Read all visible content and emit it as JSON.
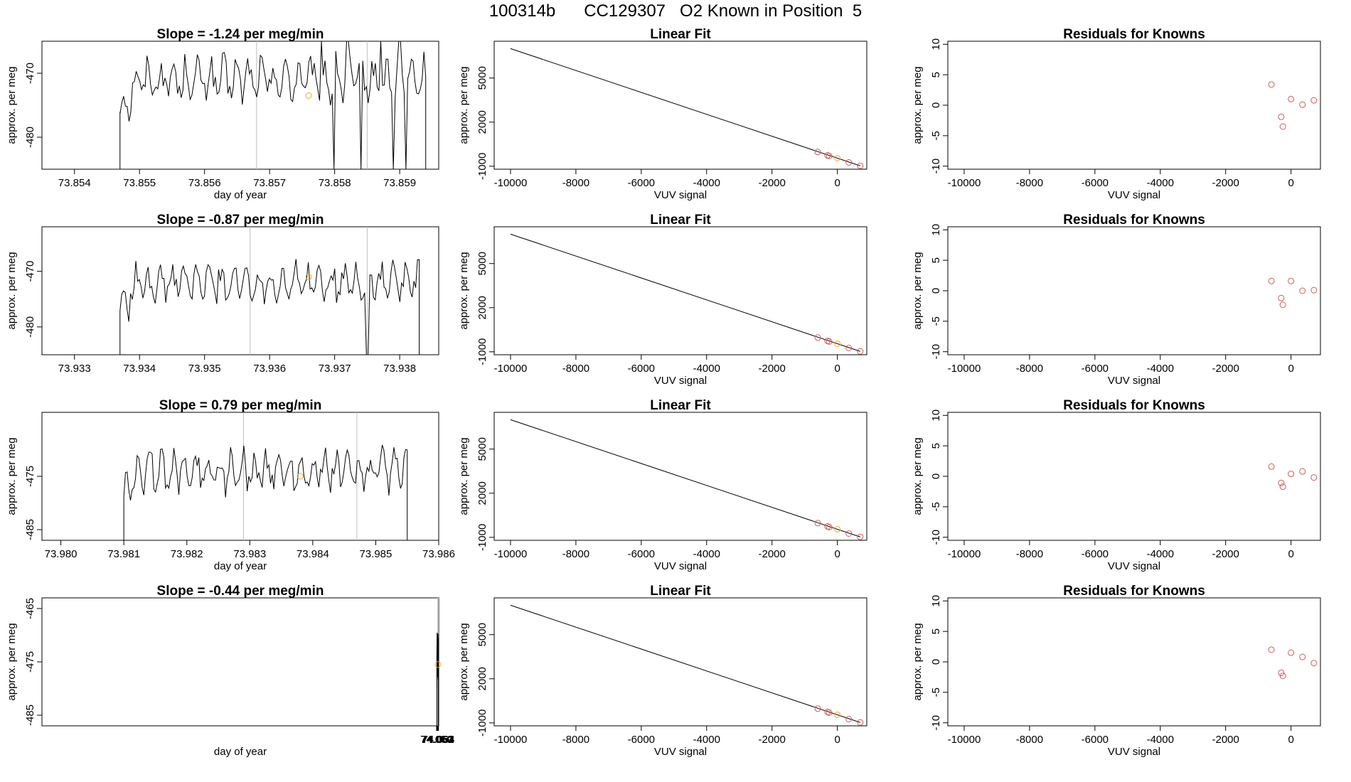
{
  "page": {
    "title": "100314b      CC129307   O2 Known in Position  5"
  },
  "colors": {
    "line": "#000000",
    "known_points": "#cd5c5c",
    "highlight_point": "#f0a830",
    "marker_lines": "#bebebe"
  },
  "chart_data": [
    {
      "type": "line",
      "panel": "time-series",
      "row": 1,
      "title": "Slope =  -1.24  per meg/min",
      "xlabel": "day of year",
      "ylabel": "approx. per meg",
      "xlim": [
        73.8535,
        73.8596
      ],
      "ylim": [
        -485,
        -465
      ],
      "xticks": [
        73.854,
        73.855,
        73.856,
        73.857,
        73.858,
        73.859
      ],
      "xtick_labels": [
        "73.854",
        "73.855",
        "73.856",
        "73.857",
        "73.858",
        "73.859"
      ],
      "yticks": [
        -470,
        -480
      ],
      "ytick_labels": [
        "-470",
        "-480"
      ],
      "vlines": [
        73.8568,
        73.8585
      ],
      "series_start": 73.8547,
      "series_end": 73.8594,
      "series_level": -471,
      "series_amp": 2.6,
      "spikes": [
        {
          "x": 73.8578,
          "y": -460
        },
        {
          "x": 73.858,
          "y": -488
        },
        {
          "x": 73.8582,
          "y": -460
        },
        {
          "x": 73.8584,
          "y": -488
        },
        {
          "x": 73.8587,
          "y": -460
        },
        {
          "x": 73.8589,
          "y": -488
        },
        {
          "x": 73.859,
          "y": -460
        },
        {
          "x": 73.8591,
          "y": -488
        }
      ],
      "point": {
        "x": 73.8576,
        "y": -473.5
      }
    },
    {
      "type": "line",
      "panel": "time-series",
      "row": 2,
      "title": "Slope =  -0.87  per meg/min",
      "xlabel": "",
      "ylabel": "approx. per meg",
      "xlim": [
        73.9325,
        73.9386
      ],
      "ylim": [
        -485,
        -462
      ],
      "xticks": [
        73.933,
        73.934,
        73.935,
        73.936,
        73.937,
        73.938
      ],
      "xtick_labels": [
        "73.933",
        "73.934",
        "73.935",
        "73.936",
        "73.937",
        "73.938"
      ],
      "yticks": [
        -470,
        -480
      ],
      "ytick_labels": [
        "-470",
        "-480"
      ],
      "vlines": [
        73.9357,
        73.9375
      ],
      "series_start": 73.9337,
      "series_end": 73.9383,
      "series_level": -472,
      "series_amp": 2.6,
      "spikes": [
        {
          "x": 73.9375,
          "y": -486
        }
      ],
      "point": {
        "x": 73.9366,
        "y": -471
      }
    },
    {
      "type": "line",
      "panel": "time-series",
      "row": 3,
      "title": "Slope =  0.79  per meg/min",
      "xlabel": "day of year",
      "ylabel": "approx. per meg",
      "xlim": [
        73.9797,
        73.986
      ],
      "ylim": [
        -487,
        -463
      ],
      "xticks": [
        73.98,
        73.981,
        73.982,
        73.983,
        73.984,
        73.985,
        73.986
      ],
      "xtick_labels": [
        "73.980",
        "73.981",
        "73.982",
        "73.983",
        "73.984",
        "73.985",
        "73.986"
      ],
      "yticks": [
        -475,
        -485
      ],
      "ytick_labels": [
        "-475",
        "-485"
      ],
      "vlines": [
        73.9829,
        73.9847
      ],
      "series_start": 73.981,
      "series_end": 73.9855,
      "series_level": -474,
      "series_amp": 2.8,
      "spikes": [],
      "point": {
        "x": 73.9838,
        "y": -475
      }
    },
    {
      "type": "line",
      "panel": "time-series",
      "row": 4,
      "title": "Slope =  -0.44  per meg/min",
      "xlabel": "day of year",
      "ylabel": "approx. per meg",
      "xlim": [
        73.0584,
        74.0645
      ],
      "ylim": [
        -487,
        -463
      ],
      "xticks": [
        74.059,
        74.06,
        74.061,
        74.062,
        74.063,
        74.064
      ],
      "xtick_labels": [
        "74.059",
        "74.060",
        "74.061",
        "74.062",
        "74.063",
        "74.064"
      ],
      "yticks": [
        -465,
        -475,
        -485
      ],
      "ytick_labels": [
        "-465",
        "-475",
        "-485"
      ],
      "vlines": [
        74.0617,
        74.0635
      ],
      "series_start": 74.0597,
      "series_end": 74.0643,
      "series_level": -474,
      "series_amp": 2.6,
      "spikes": [
        {
          "x": 74.0635,
          "y": -488
        }
      ],
      "point": {
        "x": 74.0626,
        "y": -475.5
      }
    },
    {
      "type": "line",
      "panel": "linear-fit",
      "row": 1,
      "title": "Linear Fit",
      "xlabel": "VUV signal",
      "ylabel": "approx. per meg",
      "xlim": [
        -10500,
        900
      ],
      "ylim": [
        -1200,
        7500
      ],
      "xticks": [
        -10000,
        -8000,
        -6000,
        -4000,
        -2000,
        0
      ],
      "xtick_labels": [
        "-10000",
        "-8000",
        "-6000",
        "-4000",
        "-2000",
        "0"
      ],
      "yticks": [
        -1000,
        2000,
        5000
      ],
      "ytick_labels": [
        "-1000",
        "2000",
        "5000"
      ],
      "line": {
        "x": [
          -10000,
          700
        ],
        "y": [
          7000,
          -970
        ]
      },
      "points": [
        {
          "x": -600,
          "y": -30
        },
        {
          "x": -300,
          "y": -260
        },
        {
          "x": -250,
          "y": -300
        },
        {
          "x": 350,
          "y": -740
        },
        {
          "x": 700,
          "y": -970
        }
      ],
      "highlight": {
        "x": 0,
        "y": -450
      }
    },
    {
      "type": "line",
      "panel": "linear-fit",
      "row": 2,
      "title": "Linear Fit",
      "xlabel": "VUV signal",
      "ylabel": "approx. per meg",
      "xlim": [
        -10500,
        900
      ],
      "ylim": [
        -1200,
        7500
      ],
      "xticks": [
        -10000,
        -8000,
        -6000,
        -4000,
        -2000,
        0
      ],
      "xtick_labels": [
        "-10000",
        "-8000",
        "-6000",
        "-4000",
        "-2000",
        "0"
      ],
      "yticks": [
        -1000,
        2000,
        5000
      ],
      "ytick_labels": [
        "-1000",
        "2000",
        "5000"
      ],
      "line": {
        "x": [
          -10000,
          700
        ],
        "y": [
          7000,
          -970
        ]
      },
      "points": [
        {
          "x": -600,
          "y": -30
        },
        {
          "x": -300,
          "y": -260
        },
        {
          "x": -250,
          "y": -300
        },
        {
          "x": 350,
          "y": -740
        },
        {
          "x": 700,
          "y": -970
        }
      ],
      "highlight": {
        "x": 0,
        "y": -450
      }
    },
    {
      "type": "line",
      "panel": "linear-fit",
      "row": 3,
      "title": "Linear Fit",
      "xlabel": "VUV signal",
      "ylabel": "approx. per meg",
      "xlim": [
        -10500,
        900
      ],
      "ylim": [
        -1200,
        7500
      ],
      "xticks": [
        -10000,
        -8000,
        -6000,
        -4000,
        -2000,
        0
      ],
      "xtick_labels": [
        "-10000",
        "-8000",
        "-6000",
        "-4000",
        "-2000",
        "0"
      ],
      "yticks": [
        -1000,
        2000,
        5000
      ],
      "ytick_labels": [
        "-1000",
        "2000",
        "5000"
      ],
      "line": {
        "x": [
          -10000,
          700
        ],
        "y": [
          7000,
          -970
        ]
      },
      "points": [
        {
          "x": -600,
          "y": -30
        },
        {
          "x": -300,
          "y": -260
        },
        {
          "x": -250,
          "y": -300
        },
        {
          "x": 350,
          "y": -740
        },
        {
          "x": 700,
          "y": -970
        }
      ],
      "highlight": {
        "x": 0,
        "y": -450
      }
    },
    {
      "type": "line",
      "panel": "linear-fit",
      "row": 4,
      "title": "Linear Fit",
      "xlabel": "VUV signal",
      "ylabel": "approx. per meg",
      "xlim": [
        -10500,
        900
      ],
      "ylim": [
        -1200,
        7500
      ],
      "xticks": [
        -10000,
        -8000,
        -6000,
        -4000,
        -2000,
        0
      ],
      "xtick_labels": [
        "-10000",
        "-8000",
        "-6000",
        "-4000",
        "-2000",
        "0"
      ],
      "yticks": [
        -1000,
        2000,
        5000
      ],
      "ytick_labels": [
        "-1000",
        "2000",
        "5000"
      ],
      "line": {
        "x": [
          -10000,
          700
        ],
        "y": [
          7000,
          -970
        ]
      },
      "points": [
        {
          "x": -600,
          "y": -30
        },
        {
          "x": -300,
          "y": -260
        },
        {
          "x": -250,
          "y": -300
        },
        {
          "x": 350,
          "y": -740
        },
        {
          "x": 700,
          "y": -970
        }
      ],
      "highlight": {
        "x": 0,
        "y": -450
      }
    },
    {
      "type": "scatter",
      "panel": "residuals",
      "row": 1,
      "title": "Residuals for Knowns",
      "xlabel": "VUV signal",
      "ylabel": "approx. per meg",
      "xlim": [
        -10500,
        900
      ],
      "ylim": [
        -10.5,
        10.5
      ],
      "xticks": [
        -10000,
        -8000,
        -6000,
        -4000,
        -2000,
        0
      ],
      "xtick_labels": [
        "-10000",
        "-8000",
        "-6000",
        "-4000",
        "-2000",
        "0"
      ],
      "yticks": [
        -10,
        -5,
        0,
        5,
        10
      ],
      "ytick_labels": [
        "-10",
        "-5",
        "0",
        "5",
        "10"
      ],
      "points": [
        {
          "x": -600,
          "y": 3.4
        },
        {
          "x": -300,
          "y": -1.9
        },
        {
          "x": -250,
          "y": -3.5
        },
        {
          "x": 0,
          "y": 1.0
        },
        {
          "x": 350,
          "y": 0.1
        },
        {
          "x": 700,
          "y": 0.8
        }
      ]
    },
    {
      "type": "scatter",
      "panel": "residuals",
      "row": 2,
      "title": "Residuals for Knowns",
      "xlabel": "VUV signal",
      "ylabel": "approx. per meg",
      "xlim": [
        -10500,
        900
      ],
      "ylim": [
        -10.5,
        10.5
      ],
      "xticks": [
        -10000,
        -8000,
        -6000,
        -4000,
        -2000,
        0
      ],
      "xtick_labels": [
        "-10000",
        "-8000",
        "-6000",
        "-4000",
        "-2000",
        "0"
      ],
      "yticks": [
        -10,
        -5,
        0,
        5,
        10
      ],
      "ytick_labels": [
        "-10",
        "-5",
        "0",
        "5",
        "10"
      ],
      "points": [
        {
          "x": -600,
          "y": 1.6
        },
        {
          "x": -300,
          "y": -1.2
        },
        {
          "x": -250,
          "y": -2.3
        },
        {
          "x": 0,
          "y": 1.6
        },
        {
          "x": 350,
          "y": 0.0
        },
        {
          "x": 700,
          "y": 0.1
        }
      ]
    },
    {
      "type": "scatter",
      "panel": "residuals",
      "row": 3,
      "title": "Residuals for Knowns",
      "xlabel": "VUV signal",
      "ylabel": "approx. per meg",
      "xlim": [
        -10500,
        900
      ],
      "ylim": [
        -10.5,
        10.5
      ],
      "xticks": [
        -10000,
        -8000,
        -6000,
        -4000,
        -2000,
        0
      ],
      "xtick_labels": [
        "-10000",
        "-8000",
        "-6000",
        "-4000",
        "-2000",
        "0"
      ],
      "yticks": [
        -10,
        -5,
        0,
        5,
        10
      ],
      "ytick_labels": [
        "-10",
        "-5",
        "0",
        "5",
        "10"
      ],
      "points": [
        {
          "x": -600,
          "y": 1.6
        },
        {
          "x": -300,
          "y": -1.1
        },
        {
          "x": -250,
          "y": -1.7
        },
        {
          "x": 0,
          "y": 0.4
        },
        {
          "x": 350,
          "y": 0.8
        },
        {
          "x": 700,
          "y": -0.2
        }
      ]
    },
    {
      "type": "scatter",
      "panel": "residuals",
      "row": 4,
      "title": "Residuals for Knowns",
      "xlabel": "VUV signal",
      "ylabel": "approx. per meg",
      "xlim": [
        -10500,
        900
      ],
      "ylim": [
        -10.5,
        10.5
      ],
      "xticks": [
        -10000,
        -8000,
        -6000,
        -4000,
        -2000,
        0
      ],
      "xtick_labels": [
        "-10000",
        "-8000",
        "-6000",
        "-4000",
        "-2000",
        "0"
      ],
      "yticks": [
        -10,
        -5,
        0,
        5,
        10
      ],
      "ytick_labels": [
        "-10",
        "-5",
        "0",
        "5",
        "10"
      ],
      "points": [
        {
          "x": -600,
          "y": 2.0
        },
        {
          "x": -300,
          "y": -1.8
        },
        {
          "x": -250,
          "y": -2.3
        },
        {
          "x": 0,
          "y": 1.5
        },
        {
          "x": 350,
          "y": 0.8
        },
        {
          "x": 700,
          "y": -0.2
        }
      ]
    }
  ]
}
